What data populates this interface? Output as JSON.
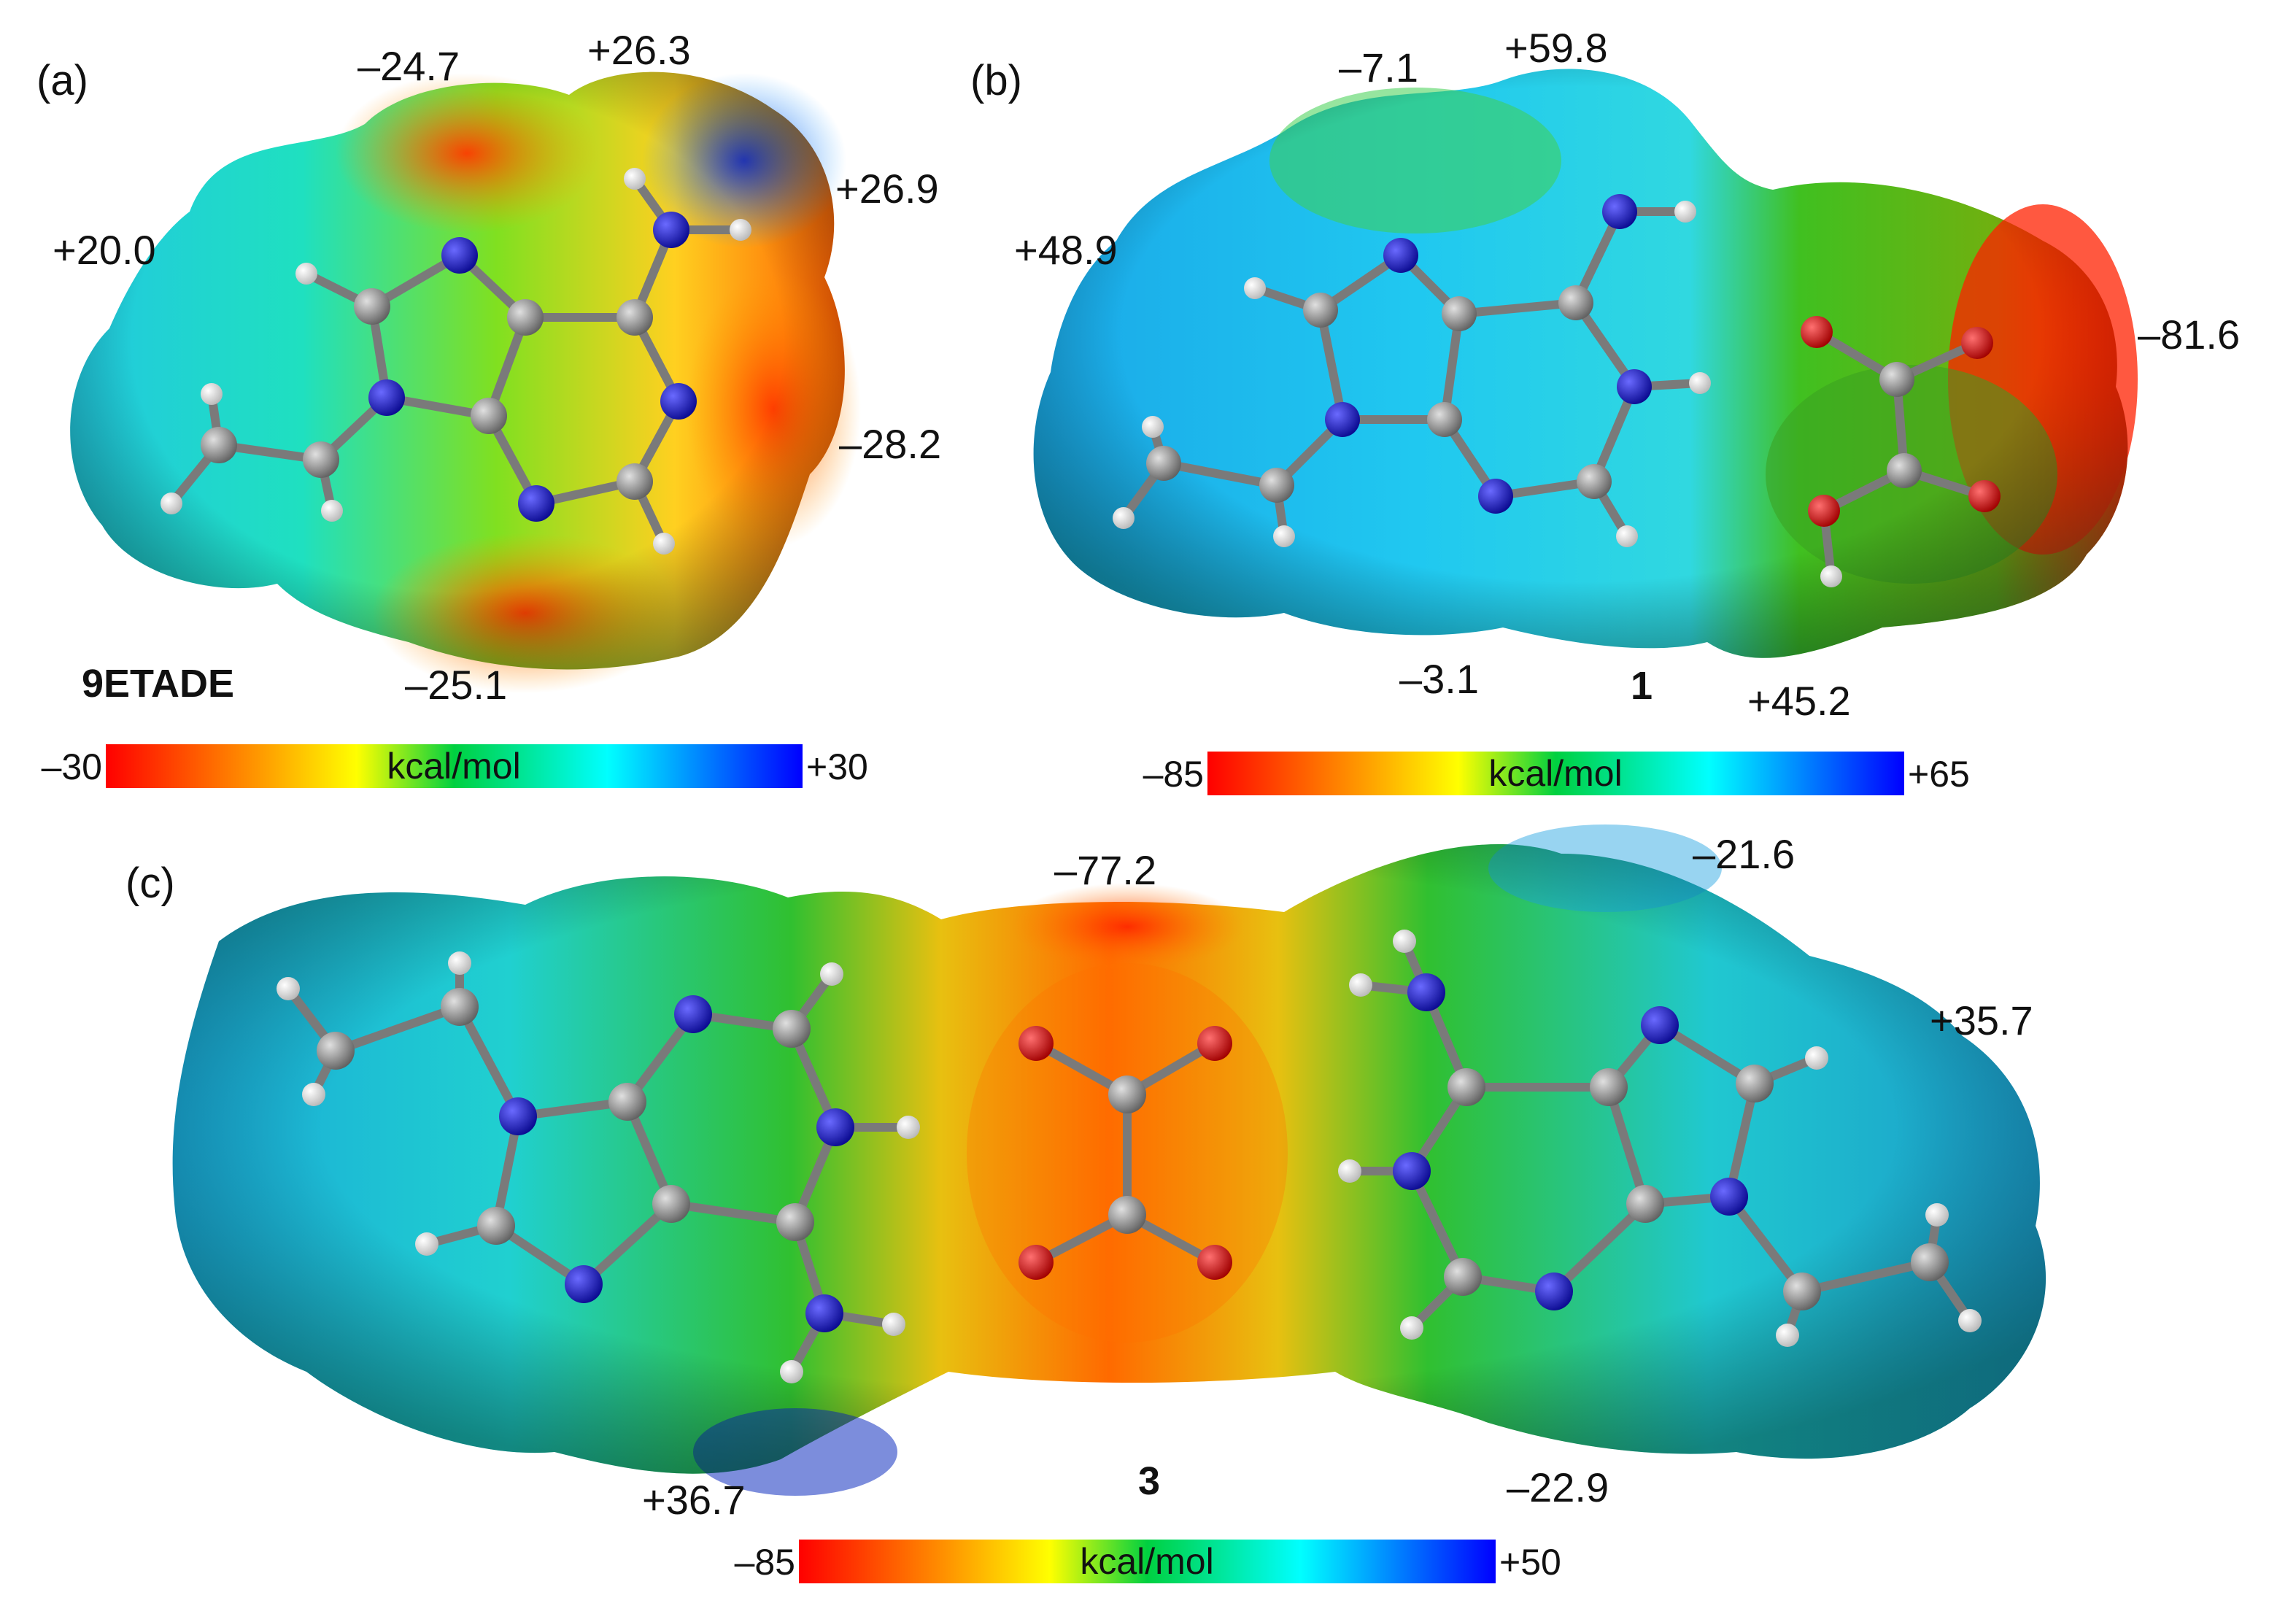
{
  "panels": {
    "a": {
      "letter": "(a)",
      "compound": "9ETADE",
      "values": [
        "–24.7",
        "+26.3",
        "+26.9",
        "+20.0",
        "–28.2",
        "–25.1"
      ],
      "colorbar": {
        "min": "–30",
        "max": "+30",
        "unit": "kcal/mol"
      }
    },
    "b": {
      "letter": "(b)",
      "compound": "1",
      "values": [
        "–7.1",
        "+59.8",
        "+48.9",
        "–81.6",
        "–3.1",
        "+45.2"
      ],
      "colorbar": {
        "min": "–85",
        "max": "+65",
        "unit": "kcal/mol"
      }
    },
    "c": {
      "letter": "(c)",
      "compound": "3",
      "values": [
        "–77.2",
        "–21.6",
        "+35.7",
        "+36.7",
        "–22.9"
      ],
      "colorbar": {
        "min": "–85",
        "max": "+50",
        "unit": "kcal/mol"
      }
    }
  },
  "colors": {
    "negative": "#ff0000",
    "orange": "#ff9900",
    "yellow": "#ffff00",
    "green": "#00cc33",
    "cyan": "#00ffff",
    "positive": "#0000ff",
    "carbon": "#888888",
    "nitrogen": "#1a1acc",
    "oxygen": "#dd0000",
    "hydrogen": "#f0f0f0"
  }
}
